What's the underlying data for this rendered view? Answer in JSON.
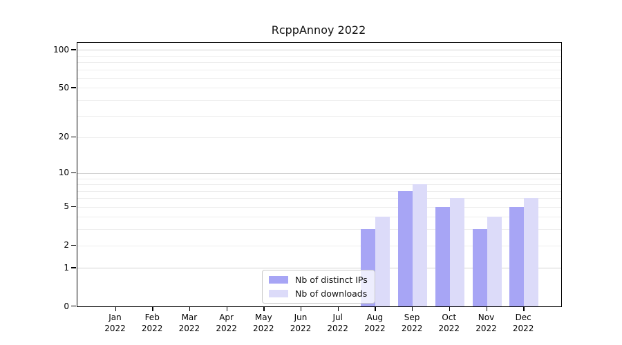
{
  "title": "RcppAnnoy 2022",
  "chart_data": {
    "type": "bar",
    "title": "RcppAnnoy 2022",
    "x_tick_months": [
      "Jan",
      "Feb",
      "Mar",
      "Apr",
      "May",
      "Jun",
      "Jul",
      "Aug",
      "Sep",
      "Oct",
      "Nov",
      "Dec"
    ],
    "x_tick_year": "2022",
    "series": [
      {
        "name": "Nb of distinct IPs",
        "color": "#a7a5f5",
        "values": [
          0,
          0,
          0,
          0,
          0,
          0,
          0,
          3,
          7,
          5,
          3,
          5
        ]
      },
      {
        "name": "Nb of downloads",
        "color": "#dcdbf9",
        "values": [
          0,
          0,
          0,
          0,
          0,
          0,
          0,
          4,
          8,
          6,
          4,
          6
        ]
      }
    ],
    "y_scale": "log1p",
    "y_ticks": [
      0,
      1,
      2,
      5,
      10,
      20,
      50,
      100
    ],
    "y_grid_major": [
      1,
      10,
      100
    ],
    "y_grid_minor": [
      2,
      3,
      4,
      5,
      6,
      7,
      8,
      9,
      20,
      30,
      40,
      50,
      60,
      70,
      80,
      90
    ],
    "ylim": [
      0,
      115
    ],
    "grid": "horizontal",
    "legend_position": "lower center",
    "colors": {
      "minor_grid": "#ededed",
      "major_grid": "#d2d2d2",
      "spine": "#000000",
      "background": "#ffffff"
    }
  }
}
